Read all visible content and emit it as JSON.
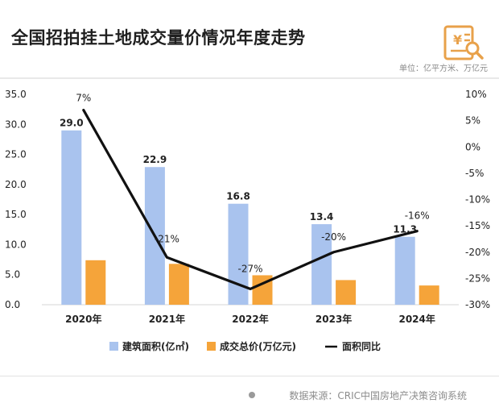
{
  "header": {
    "title": "全国招拍挂土地成交量价情况年度走势",
    "unit": "单位：亿平方米、万亿元"
  },
  "footer": {
    "source": "数据来源：CRIC中国房地产决策咨询系统"
  },
  "colors": {
    "area_bar": "#a9c3ee",
    "amount_bar": "#f5a43a",
    "yoy_line": "#111111",
    "logo": "#e8a14a"
  },
  "icons": {
    "logo": "yen-document-search-icon"
  },
  "chart_data": {
    "type": "bar",
    "categories": [
      "2020年",
      "2021年",
      "2022年",
      "2023年",
      "2024年"
    ],
    "series": [
      {
        "name": "建筑面积(亿㎡)",
        "type": "bar",
        "axis": "left",
        "values": [
          29.0,
          22.9,
          16.8,
          13.4,
          11.3
        ],
        "labels": [
          "29.0",
          "22.9",
          "16.8",
          "13.4",
          "11.3"
        ]
      },
      {
        "name": "成交总价(万亿元)",
        "type": "bar",
        "axis": "left",
        "values": [
          7.4,
          6.8,
          4.9,
          4.1,
          3.2
        ]
      },
      {
        "name": "面积同比",
        "type": "line",
        "axis": "right",
        "values": [
          7,
          -21,
          -27,
          -20,
          -16
        ],
        "labels": [
          "7%",
          "-21%",
          "-27%",
          "-20%",
          "-16%"
        ]
      }
    ],
    "left_axis": {
      "ylim": [
        0,
        35
      ],
      "ticks": [
        0,
        5,
        10,
        15,
        20,
        25,
        30,
        35
      ],
      "tick_labels": [
        "0.0",
        "5.0",
        "10.0",
        "15.0",
        "20.0",
        "25.0",
        "30.0",
        "35.0"
      ]
    },
    "right_axis": {
      "ylim": [
        -30,
        10
      ],
      "ticks": [
        10,
        5,
        0,
        -5,
        -10,
        -15,
        -20,
        -25,
        -30
      ],
      "tick_labels": [
        "10%",
        "5%",
        "0%",
        "-5%",
        "-10%",
        "-15%",
        "-20%",
        "-25%",
        "-30%"
      ]
    },
    "grid": false,
    "legend": {
      "position": "bottom",
      "entries": [
        "建筑面积(亿㎡)",
        "成交总价(万亿元)",
        "面积同比"
      ]
    }
  }
}
